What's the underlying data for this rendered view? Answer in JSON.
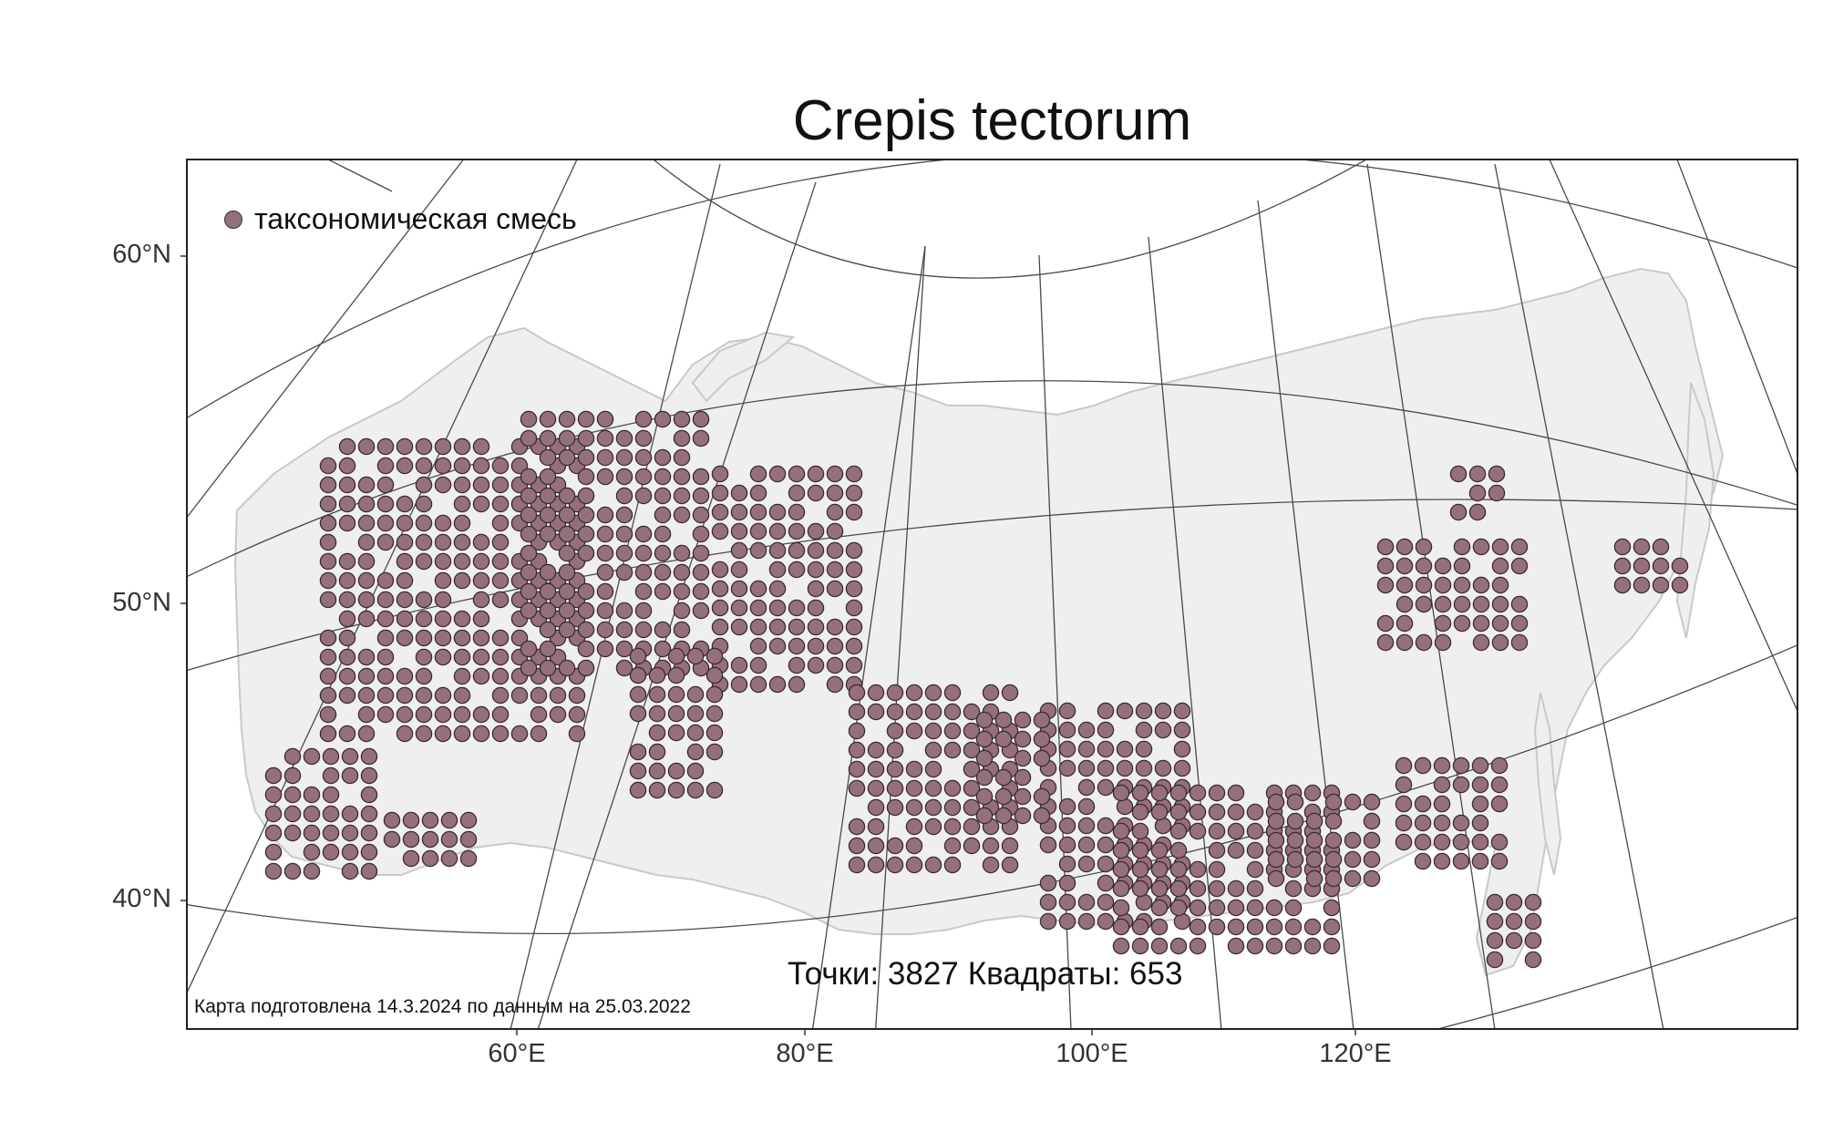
{
  "title": "Crepis tectorum",
  "legend": {
    "label": "таксономическая смесь",
    "marker_color": "#94707c",
    "marker_icon": "filled-circle"
  },
  "stats": {
    "points": "Точки: 3827",
    "squares": "Квадраты: 653"
  },
  "credit": "Карта подготовлена 14.3.2024 по данным на 25.03.2022",
  "axes": {
    "latitude_labels": [
      "60°N",
      "50°N",
      "40°N"
    ],
    "longitude_labels": [
      "60°E",
      "80°E",
      "100°E",
      "120°E"
    ]
  },
  "colors": {
    "land": "#efefef",
    "coastline": "#c9c9c9",
    "graticule": "#4a4a4a",
    "frame": "#222222",
    "marker_fill": "#94707c",
    "marker_stroke": "#3b2a30"
  }
}
